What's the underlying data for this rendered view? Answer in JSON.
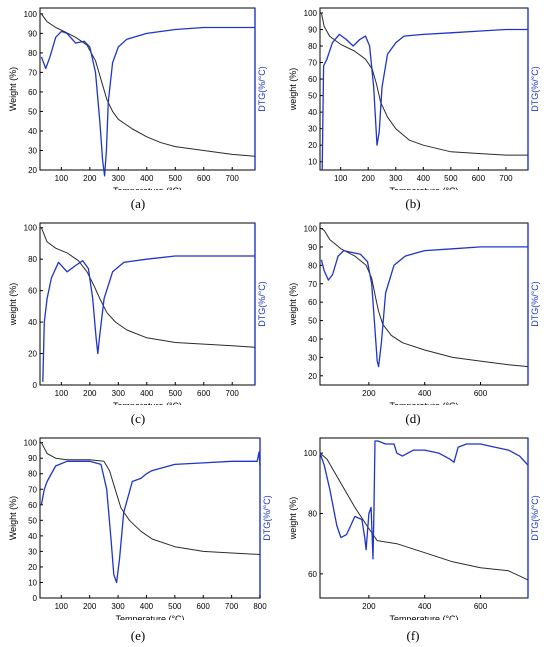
{
  "colors": {
    "weight_curve": "#2b2b2b",
    "dtg_curve": "#1f35c8",
    "dtg_axis": "#1f35c8",
    "axis": "#000000"
  },
  "panels": [
    {
      "caption": "(a)",
      "xlabel": "Temperature (°C)",
      "ylabel": "Weight (%)",
      "y2label": "DTG(%/°C)",
      "xlim": [
        25,
        780
      ],
      "xticks": [
        100,
        200,
        300,
        400,
        500,
        600,
        700
      ],
      "ylim": [
        20,
        103
      ],
      "yticks": [
        20,
        30,
        40,
        50,
        60,
        70,
        80,
        90,
        100
      ]
    },
    {
      "caption": "(b)",
      "xlabel": "Temperature (°C)",
      "ylabel": "weight (%)",
      "y2label": "DTG(%/°C)",
      "xlim": [
        25,
        780
      ],
      "xticks": [
        100,
        200,
        300,
        400,
        500,
        600,
        700
      ],
      "ylim": [
        5,
        103
      ],
      "yticks": [
        10,
        20,
        30,
        40,
        50,
        60,
        70,
        80,
        90,
        100
      ]
    },
    {
      "caption": "(c)",
      "xlabel": "Temperature (°C)",
      "ylabel": "weight (%)",
      "y2label": "DTG(%/°C)",
      "xlim": [
        25,
        780
      ],
      "xticks": [
        100,
        200,
        300,
        400,
        500,
        600,
        700
      ],
      "ylim": [
        0,
        103
      ],
      "yticks": [
        0,
        20,
        40,
        60,
        80,
        100
      ]
    },
    {
      "caption": "(d)",
      "xlabel": "Temperature (°C)",
      "ylabel": "weight (%)",
      "y2label": "DTG(%/°C)",
      "xlim": [
        25,
        770
      ],
      "xticks": [
        200,
        400,
        600
      ],
      "ylim": [
        15,
        103
      ],
      "yticks": [
        20,
        30,
        40,
        50,
        60,
        70,
        80,
        90,
        100
      ]
    },
    {
      "caption": "(e)",
      "xlabel": "Temperature (°C)",
      "ylabel": "Weight (%)",
      "y2label": "DTG(%/°C)",
      "xlim": [
        25,
        800
      ],
      "xticks": [
        100,
        200,
        300,
        400,
        500,
        600,
        700,
        800
      ],
      "ylim": [
        0,
        103
      ],
      "yticks": [
        0,
        10,
        20,
        30,
        40,
        50,
        60,
        70,
        80,
        90,
        100
      ]
    },
    {
      "caption": "(f)",
      "xlabel": "Temperature (°C)",
      "ylabel": "weight (%)",
      "y2label": "DTG(%/°C)",
      "xlim": [
        25,
        770
      ],
      "xticks": [
        200,
        400,
        600
      ],
      "ylim": [
        52,
        105
      ],
      "yticks": [
        60,
        80,
        100
      ]
    }
  ],
  "chart_data": [
    {
      "type": "line",
      "title": "",
      "xlabel": "Temperature (°C)",
      "ylabel": "Weight (%)",
      "y2label": "DTG(%/°C)",
      "xlim": [
        25,
        780
      ],
      "ylim": [
        20,
        103
      ],
      "grid": false,
      "series": [
        {
          "role": "weight",
          "axis": "left",
          "x": [
            30,
            50,
            80,
            110,
            150,
            190,
            220,
            240,
            260,
            280,
            300,
            350,
            400,
            450,
            500,
            600,
            700,
            780
          ],
          "y": [
            100,
            96,
            93,
            91,
            88,
            84,
            76,
            66,
            56,
            50,
            46,
            41,
            37,
            34,
            32,
            30,
            28,
            27
          ]
        },
        {
          "role": "dtg",
          "axis": "right",
          "x": [
            30,
            45,
            60,
            80,
            100,
            120,
            150,
            180,
            200,
            220,
            235,
            245,
            252,
            258,
            265,
            280,
            300,
            330,
            400,
            500,
            600,
            700,
            780
          ],
          "y": [
            78,
            72,
            78,
            88,
            91,
            90,
            85,
            86,
            83,
            70,
            45,
            25,
            17,
            30,
            55,
            75,
            83,
            87,
            90,
            92,
            93,
            93,
            93
          ]
        }
      ]
    },
    {
      "type": "line",
      "title": "",
      "xlabel": "Temperature (°C)",
      "ylabel": "weight (%)",
      "y2label": "DTG(%/°C)",
      "xlim": [
        25,
        780
      ],
      "ylim": [
        5,
        103
      ],
      "grid": false,
      "series": [
        {
          "role": "weight",
          "axis": "left",
          "x": [
            30,
            40,
            60,
            100,
            150,
            190,
            215,
            230,
            245,
            270,
            300,
            350,
            400,
            500,
            600,
            700,
            780
          ],
          "y": [
            100,
            92,
            86,
            81,
            77,
            72,
            66,
            57,
            46,
            37,
            30,
            23,
            20,
            16,
            15,
            14,
            14
          ]
        },
        {
          "role": "dtg",
          "axis": "right",
          "x": [
            33,
            38,
            50,
            70,
            95,
            120,
            145,
            170,
            190,
            205,
            220,
            232,
            240,
            250,
            270,
            300,
            330,
            400,
            500,
            600,
            700,
            780
          ],
          "y": [
            5,
            68,
            72,
            82,
            87,
            84,
            80,
            84,
            86,
            80,
            55,
            20,
            28,
            55,
            75,
            82,
            86,
            87,
            88,
            89,
            90,
            90
          ]
        }
      ]
    },
    {
      "type": "line",
      "title": "",
      "xlabel": "Temperature (°C)",
      "ylabel": "weight (%)",
      "y2label": "DTG(%/°C)",
      "xlim": [
        25,
        780
      ],
      "ylim": [
        0,
        103
      ],
      "grid": false,
      "series": [
        {
          "role": "weight",
          "axis": "left",
          "x": [
            30,
            50,
            80,
            120,
            160,
            190,
            215,
            235,
            260,
            290,
            330,
            400,
            500,
            600,
            700,
            780
          ],
          "y": [
            100,
            91,
            87,
            84,
            79,
            72,
            63,
            55,
            46,
            40,
            35,
            30,
            27,
            26,
            25,
            24
          ]
        },
        {
          "role": "dtg",
          "axis": "right",
          "x": [
            35,
            40,
            50,
            65,
            90,
            120,
            150,
            175,
            195,
            210,
            222,
            228,
            235,
            250,
            280,
            320,
            400,
            500,
            600,
            700,
            780
          ],
          "y": [
            2,
            40,
            55,
            68,
            78,
            72,
            76,
            79,
            74,
            55,
            30,
            20,
            32,
            55,
            72,
            78,
            80,
            82,
            82,
            82,
            82
          ]
        }
      ]
    },
    {
      "type": "line",
      "title": "",
      "xlabel": "Temperature (°C)",
      "ylabel": "weight (%)",
      "y2label": "DTG(%/°C)",
      "xlim": [
        25,
        770
      ],
      "ylim": [
        15,
        103
      ],
      "grid": false,
      "series": [
        {
          "role": "weight",
          "axis": "left",
          "x": [
            30,
            40,
            60,
            100,
            150,
            190,
            210,
            225,
            235,
            250,
            280,
            320,
            400,
            500,
            600,
            700,
            770
          ],
          "y": [
            100,
            99,
            94,
            89,
            85,
            80,
            73,
            62,
            55,
            48,
            42,
            38,
            34,
            30,
            28,
            26,
            25
          ]
        },
        {
          "role": "dtg",
          "axis": "right",
          "x": [
            30,
            40,
            55,
            70,
            90,
            110,
            140,
            170,
            195,
            210,
            222,
            230,
            235,
            245,
            260,
            290,
            330,
            400,
            500,
            600,
            700,
            770
          ],
          "y": [
            83,
            77,
            72,
            75,
            85,
            88,
            87,
            86,
            82,
            70,
            45,
            28,
            25,
            38,
            65,
            80,
            85,
            88,
            89,
            90,
            90,
            90
          ]
        }
      ]
    },
    {
      "type": "line",
      "title": "",
      "xlabel": "Temperature (°C)",
      "ylabel": "Weight (%)",
      "y2label": "DTG(%/°C)",
      "xlim": [
        25,
        800
      ],
      "ylim": [
        0,
        103
      ],
      "grid": false,
      "series": [
        {
          "role": "weight",
          "axis": "left",
          "x": [
            30,
            50,
            80,
            120,
            200,
            250,
            270,
            290,
            310,
            340,
            380,
            420,
            500,
            600,
            700,
            800
          ],
          "y": [
            100,
            93,
            90,
            89,
            89,
            88,
            82,
            70,
            58,
            50,
            43,
            38,
            33,
            30,
            29,
            28
          ]
        },
        {
          "role": "dtg",
          "axis": "right",
          "x": [
            30,
            40,
            50,
            80,
            120,
            200,
            240,
            260,
            275,
            285,
            295,
            305,
            320,
            350,
            380,
            400,
            420,
            500,
            600,
            700,
            790,
            797,
            800
          ],
          "y": [
            60,
            70,
            75,
            85,
            88,
            88,
            86,
            70,
            38,
            15,
            10,
            25,
            55,
            75,
            77,
            80,
            82,
            86,
            87,
            88,
            88,
            94,
            85
          ]
        }
      ]
    },
    {
      "type": "line",
      "title": "",
      "xlabel": "Temperature (°C)",
      "ylabel": "weight (%)",
      "y2label": "DTG(%/°C)",
      "xlim": [
        25,
        770
      ],
      "ylim": [
        52,
        105
      ],
      "grid": false,
      "series": [
        {
          "role": "weight",
          "axis": "left",
          "x": [
            25,
            50,
            100,
            150,
            200,
            230,
            300,
            400,
            500,
            600,
            700,
            770
          ],
          "y": [
            100,
            98,
            90,
            82,
            75,
            71,
            70,
            67,
            64,
            62,
            61,
            58
          ]
        },
        {
          "role": "dtg",
          "axis": "right",
          "x": [
            25,
            40,
            60,
            85,
            100,
            120,
            150,
            175,
            185,
            190,
            200,
            208,
            212,
            215,
            218,
            222,
            226,
            232,
            260,
            290,
            300,
            320,
            360,
            400,
            450,
            490,
            505,
            520,
            550,
            600,
            650,
            700,
            740,
            770
          ],
          "y": [
            100,
            96,
            88,
            76,
            72,
            73,
            79,
            78,
            72,
            68,
            80,
            82,
            72,
            65,
            80,
            104,
            104,
            104,
            103,
            103,
            100,
            99,
            101,
            101,
            100,
            98,
            97,
            102,
            103,
            103,
            102,
            101,
            99,
            96
          ]
        }
      ]
    }
  ]
}
